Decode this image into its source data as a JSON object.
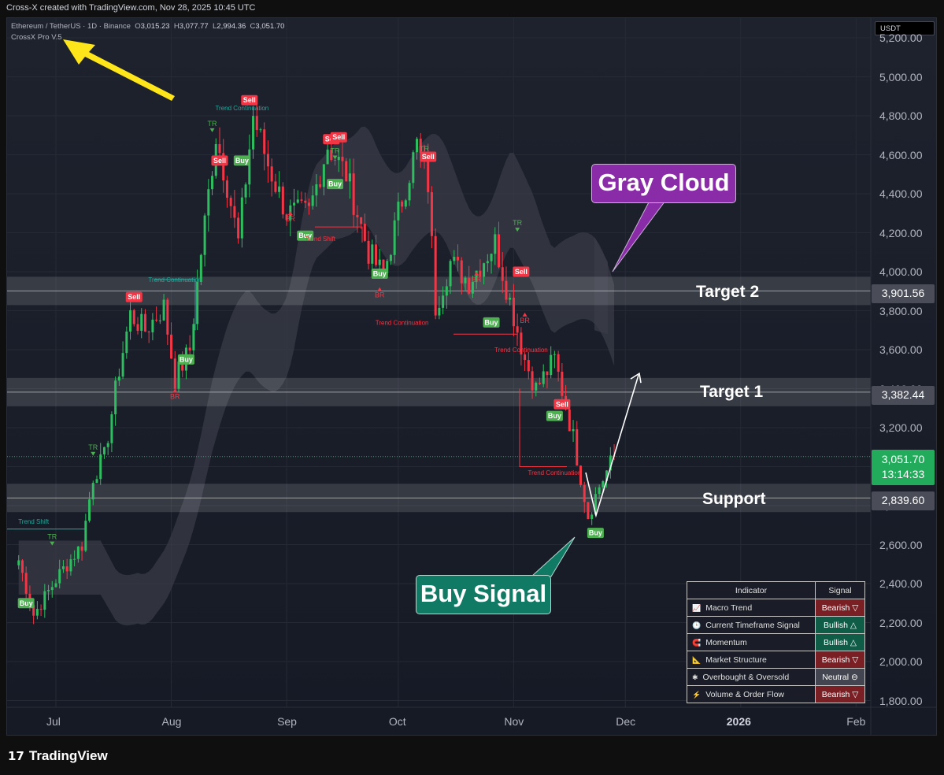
{
  "header": {
    "attribution": "Cross-X created with TradingView.com, Nov 28, 2025 10:45 UTC",
    "symbol": "Ethereum / TetherUS · 1D · Binance",
    "ohlc": {
      "o_label": "O",
      "o": "3,015.23",
      "h_label": "H",
      "h": "3,077.77",
      "l_label": "L",
      "l": "2,994.36",
      "c_label": "C",
      "c": "3,051.70"
    },
    "indicator_name": "CrossX Pro V.5",
    "currency": "USDT"
  },
  "chart_data": {
    "type": "candlestick",
    "ylim": [
      1750,
      5300
    ],
    "y_ticks": [
      "5,200.00",
      "5,000.00",
      "4,800.00",
      "4,600.00",
      "4,400.00",
      "4,200.00",
      "4,000.00",
      "3,800.00",
      "3,600.00",
      "3,400.00",
      "3,200.00",
      "3,000.00",
      "2,800.00",
      "2,600.00",
      "2,400.00",
      "2,200.00",
      "2,000.00",
      "1,800.00"
    ],
    "y_tick_values": [
      5200,
      5000,
      4800,
      4600,
      4400,
      4200,
      4000,
      3800,
      3600,
      3400,
      3200,
      3000,
      2800,
      2600,
      2400,
      2200,
      2000,
      1800
    ],
    "x_ticks": [
      "Jul",
      "Aug",
      "Sep",
      "Oct",
      "Nov",
      "Dec",
      "2026",
      "Feb"
    ],
    "x_tick_dates": [
      "2025-07-01",
      "2025-08-01",
      "2025-09-01",
      "2025-10-01",
      "2025-11-01",
      "2025-12-01",
      "2026-01-01",
      "2026-02-01"
    ],
    "x_range": [
      "2025-06-21",
      "2026-02-20"
    ],
    "price_path": [
      {
        "date": "2025-06-21",
        "close": 2520
      },
      {
        "date": "2025-06-25",
        "close": 2240
      },
      {
        "date": "2025-07-02",
        "close": 2450
      },
      {
        "date": "2025-07-08",
        "close": 2600
      },
      {
        "date": "2025-07-11",
        "close": 2950
      },
      {
        "date": "2025-07-14",
        "close": 3050
      },
      {
        "date": "2025-07-18",
        "close": 3500
      },
      {
        "date": "2025-07-21",
        "close": 3780
      },
      {
        "date": "2025-07-25",
        "close": 3700
      },
      {
        "date": "2025-07-30",
        "close": 3820
      },
      {
        "date": "2025-08-02",
        "close": 3450
      },
      {
        "date": "2025-08-06",
        "close": 3600
      },
      {
        "date": "2025-08-09",
        "close": 4100
      },
      {
        "date": "2025-08-13",
        "close": 4700
      },
      {
        "date": "2025-08-16",
        "close": 4450
      },
      {
        "date": "2025-08-19",
        "close": 4150
      },
      {
        "date": "2025-08-23",
        "close": 4800
      },
      {
        "date": "2025-08-27",
        "close": 4550
      },
      {
        "date": "2025-09-01",
        "close": 4300
      },
      {
        "date": "2025-09-07",
        "close": 4300
      },
      {
        "date": "2025-09-12",
        "close": 4650
      },
      {
        "date": "2025-09-17",
        "close": 4500
      },
      {
        "date": "2025-09-23",
        "close": 4100
      },
      {
        "date": "2025-09-27",
        "close": 3980
      },
      {
        "date": "2025-10-01",
        "close": 4300
      },
      {
        "date": "2025-10-06",
        "close": 4650
      },
      {
        "date": "2025-10-09",
        "close": 4450
      },
      {
        "date": "2025-10-11",
        "close": 3820
      },
      {
        "date": "2025-10-15",
        "close": 4050
      },
      {
        "date": "2025-10-20",
        "close": 3950
      },
      {
        "date": "2025-10-27",
        "close": 4150
      },
      {
        "date": "2025-10-31",
        "close": 3850
      },
      {
        "date": "2025-11-04",
        "close": 3550
      },
      {
        "date": "2025-11-07",
        "close": 3400
      },
      {
        "date": "2025-11-12",
        "close": 3550
      },
      {
        "date": "2025-11-17",
        "close": 3150
      },
      {
        "date": "2025-11-21",
        "close": 2750
      },
      {
        "date": "2025-11-24",
        "close": 2900
      },
      {
        "date": "2025-11-28",
        "close": 3052
      }
    ],
    "levels": [
      {
        "label": "Target 2",
        "price": 3901.56,
        "price_label": "3,901.56"
      },
      {
        "label": "Target 1",
        "price": 3382.44,
        "price_label": "3,382.44"
      },
      {
        "label": "Support",
        "price": 2839.6,
        "price_label": "2,839.60"
      }
    ],
    "last_price": {
      "value": 3051.7,
      "label": "3,051.70",
      "countdown": "13:14:33"
    },
    "signals": [
      {
        "text": "Buy",
        "date": "2025-06-23",
        "price": 2300
      },
      {
        "text": "TR",
        "date": "2025-06-30",
        "price": 2640
      },
      {
        "text": "Trend Shift",
        "date": "2025-06-25",
        "price": 2720
      },
      {
        "text": "TR",
        "date": "2025-07-11",
        "price": 3100
      },
      {
        "text": "Sell",
        "date": "2025-07-22",
        "price": 3870
      },
      {
        "text": "Trend Continuation",
        "date": "2025-08-02",
        "price": 3960
      },
      {
        "text": "BR",
        "date": "2025-08-02",
        "price": 3360
      },
      {
        "text": "Buy",
        "date": "2025-08-05",
        "price": 3550
      },
      {
        "text": "TR",
        "date": "2025-08-12",
        "price": 4760
      },
      {
        "text": "Trend Continuation",
        "date": "2025-08-20",
        "price": 4840
      },
      {
        "text": "Sell",
        "date": "2025-08-14",
        "price": 4570
      },
      {
        "text": "Sell",
        "date": "2025-08-22",
        "price": 4880
      },
      {
        "text": "Buy",
        "date": "2025-08-20",
        "price": 4570
      },
      {
        "text": "BR",
        "date": "2025-09-02",
        "price": 4270
      },
      {
        "text": "Buy",
        "date": "2025-09-06",
        "price": 4185
      },
      {
        "text": "Trend Shift",
        "date": "2025-09-10",
        "price": 4170
      },
      {
        "text": "Sell",
        "date": "2025-09-13",
        "price": 4680
      },
      {
        "text": "Sell",
        "date": "2025-09-15",
        "price": 4690
      },
      {
        "text": "TR",
        "date": "2025-09-14",
        "price": 4620
      },
      {
        "text": "Buy",
        "date": "2025-09-14",
        "price": 4450
      },
      {
        "text": "Buy",
        "date": "2025-09-26",
        "price": 3990
      },
      {
        "text": "BR",
        "date": "2025-09-26",
        "price": 3880
      },
      {
        "text": "Trend Continuation",
        "date": "2025-10-02",
        "price": 3740
      },
      {
        "text": "TR",
        "date": "2025-10-08",
        "price": 4630
      },
      {
        "text": "Sell",
        "date": "2025-10-09",
        "price": 4590
      },
      {
        "text": "BR",
        "date": "2025-10-22",
        "price": 3960
      },
      {
        "text": "Buy",
        "date": "2025-10-26",
        "price": 3740
      },
      {
        "text": "TR",
        "date": "2025-11-02",
        "price": 4250
      },
      {
        "text": "Sell",
        "date": "2025-11-03",
        "price": 4000
      },
      {
        "text": "BR",
        "date": "2025-11-04",
        "price": 3750
      },
      {
        "text": "Trend Continuation",
        "date": "2025-11-03",
        "price": 3600
      },
      {
        "text": "Buy",
        "date": "2025-11-12",
        "price": 3260
      },
      {
        "text": "Sell",
        "date": "2025-11-14",
        "price": 3320
      },
      {
        "text": "Trend Continuation",
        "date": "2025-11-12",
        "price": 2970
      },
      {
        "text": "Buy",
        "date": "2025-11-23",
        "price": 2660
      }
    ]
  },
  "annotations": {
    "gray_cloud": "Gray Cloud",
    "buy_signal": "Buy Signal"
  },
  "signal_table": {
    "headers": [
      "Indicator",
      "Signal"
    ],
    "rows": [
      {
        "icon": "chart-icon",
        "label": "Macro Trend",
        "signal": "Bearish ▽",
        "color": "#7a1f24"
      },
      {
        "icon": "clock-icon",
        "label": "Current Timeframe Signal",
        "signal": "Bullish △",
        "color": "#0f5c47"
      },
      {
        "icon": "magnet-icon",
        "label": "Momentum",
        "signal": "Bullish △",
        "color": "#0f5c47"
      },
      {
        "icon": "ruler-icon",
        "label": "Market Structure",
        "signal": "Bearish ▽",
        "color": "#7a1f24"
      },
      {
        "icon": "clover-icon",
        "label": "Overbought & Oversold",
        "signal": "Neutral ⊖",
        "color": "#434651"
      },
      {
        "icon": "bolt-icon",
        "label": "Volume & Order Flow",
        "signal": "Bearish ▽",
        "color": "#7a1f24"
      }
    ]
  },
  "footer": {
    "brand": "TradingView"
  },
  "colors": {
    "up": "#26a69a",
    "up_bright": "#2ebd5f",
    "down": "#f23645",
    "gray_cloud": "#8a2ca8",
    "buy_signal": "#117a65",
    "last_price": "#22ab5b"
  }
}
